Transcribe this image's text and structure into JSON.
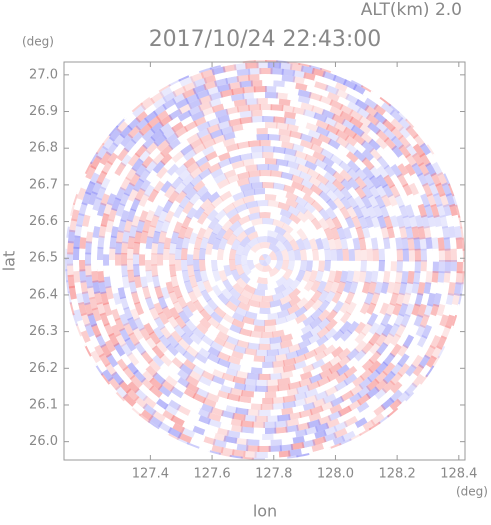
{
  "chart_data": {
    "type": "radar-field",
    "title": "2017/10/24 22:43:00",
    "altitude_label": "ALT(km) 2.0",
    "x_label": "lon",
    "y_label": "lat",
    "x_unit": "(deg)",
    "y_unit": "(deg)",
    "xlim": [
      127.12,
      128.42
    ],
    "ylim": [
      25.95,
      27.035
    ],
    "xticks": [
      127.4,
      127.6,
      127.8,
      {
        "value": 128.0,
        "label": "128.0"
      },
      128.2,
      128.4
    ],
    "yticks": [
      {
        "value": 26.0,
        "label": "26.0"
      },
      26.1,
      26.2,
      26.3,
      26.4,
      26.5,
      26.6,
      26.7,
      26.8,
      26.9,
      {
        "value": 27.0,
        "label": "27.0"
      }
    ]
  }
}
